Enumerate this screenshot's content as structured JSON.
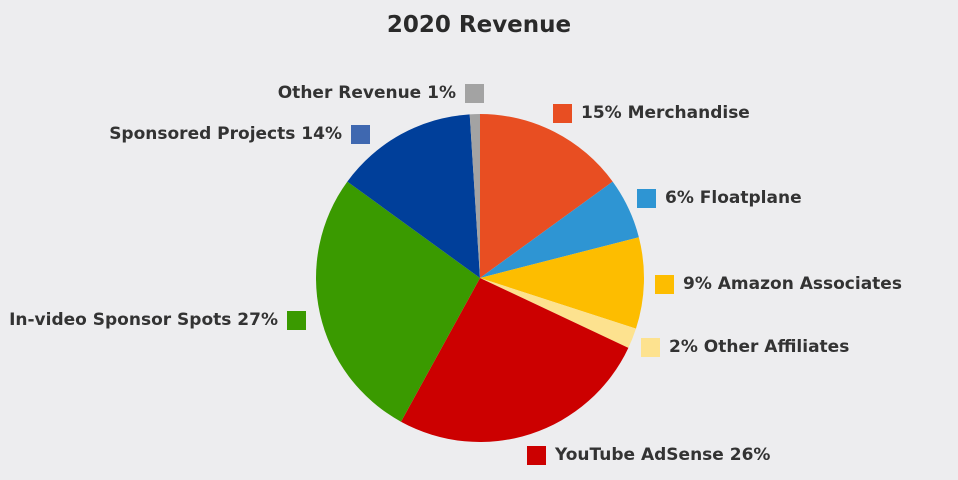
{
  "chart_data": {
    "type": "pie",
    "title": "2020 Revenue",
    "slices": [
      {
        "label": "15% Merchandise",
        "value": 15,
        "color": "#e84e22",
        "side": "right"
      },
      {
        "label": "6% Floatplane",
        "value": 6,
        "color": "#2e95d3",
        "side": "right"
      },
      {
        "label": "9% Amazon Associates",
        "value": 9,
        "color": "#fdbd00",
        "side": "right"
      },
      {
        "label": "2% Other Affiliates",
        "value": 2,
        "color": "#fde28f",
        "side": "right"
      },
      {
        "label": "YouTube AdSense 26%",
        "value": 26,
        "color": "#cc0000",
        "side": "right"
      },
      {
        "label": "In-video Sponsor Spots 27%",
        "value": 27,
        "color": "#3a9a00",
        "side": "left"
      },
      {
        "label": "Sponsored Projects  14%",
        "value": 14,
        "color": "#003f9a",
        "side": "left"
      },
      {
        "label": "Other Revenue 1%",
        "value": 1,
        "color": "#a3a3a3",
        "side": "left"
      }
    ],
    "legend_swatch_colors": [
      "#e84e22",
      "#2e95d3",
      "#fdbd00",
      "#fde28f",
      "#cc0000",
      "#3a9a00",
      "#3f68b0",
      "#a3a3a3"
    ]
  }
}
